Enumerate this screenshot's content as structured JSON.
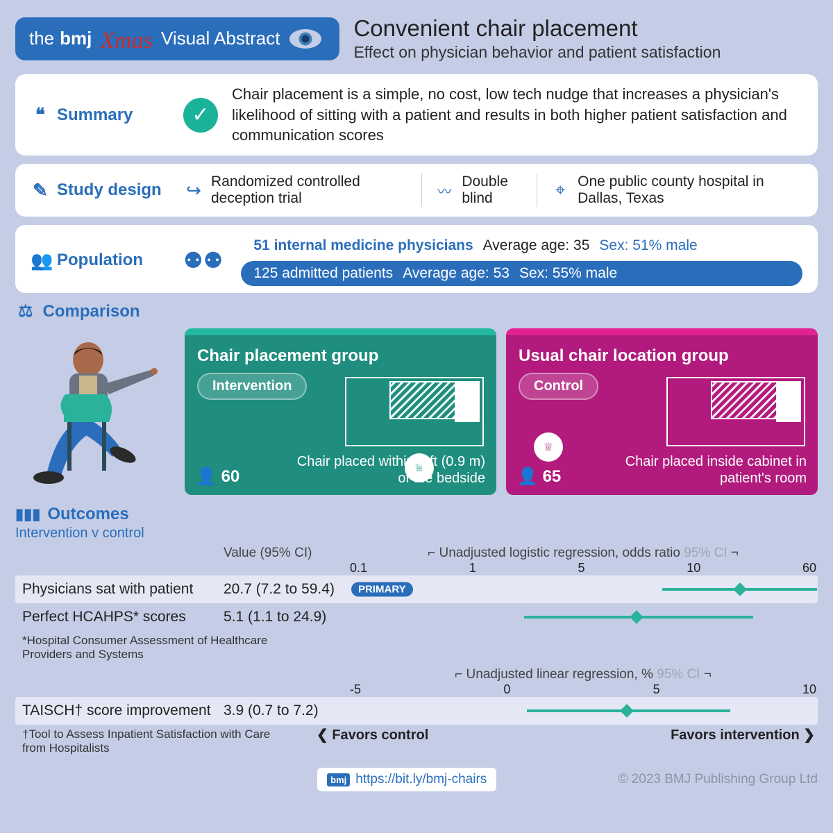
{
  "colors": {
    "bmj_blue": "#2a6ebb",
    "bg": "#c5cde6",
    "teal": "#1f8e7e",
    "teal_light": "#24b8a0",
    "magenta": "#b21b7d",
    "magenta_light": "#e32291",
    "forest": "#2bb29a",
    "grey": "#9aa5b5"
  },
  "header": {
    "brand_pre": "the",
    "brand_bold": "bmj",
    "xmas": "Xmas",
    "brand_suffix": "Visual Abstract",
    "title": "Convenient chair placement",
    "subtitle": "Effect on physician behavior and patient satisfaction"
  },
  "summary": {
    "label": "Summary",
    "text": "Chair placement is a simple, no cost, low tech nudge that increases a physician's likelihood of sitting with a patient and results in both higher patient satisfaction and communication scores"
  },
  "design": {
    "label": "Study design",
    "items": [
      {
        "icon": "↪",
        "text": "Randomized controlled deception trial"
      },
      {
        "icon": "👁",
        "text": "Double blind"
      },
      {
        "icon": "📍",
        "text": "One public county hospital in Dallas, Texas"
      }
    ]
  },
  "population": {
    "label": "Population",
    "physicians": {
      "n": "51 internal medicine physicians",
      "age": "Average age: 35",
      "sex": "Sex: 51% male"
    },
    "patients": {
      "n": "125 admitted patients",
      "age": "Average age: 53",
      "sex": "Sex: 55% male"
    }
  },
  "comparison": {
    "label": "Comparison",
    "intervention": {
      "title": "Chair placement group",
      "tag": "Intervention",
      "n": "60",
      "desc": "Chair placed within 3 ft (0.9 m) of the bedside"
    },
    "control": {
      "title": "Usual chair location group",
      "tag": "Control",
      "n": "65",
      "desc": "Chair placed inside cabinet in patient's room"
    }
  },
  "outcomes": {
    "label": "Outcomes",
    "sub": "Intervention v control",
    "value_header": "Value (95% CI)",
    "forest1": {
      "title_pre": "Unadjusted logistic regression, odds ratio",
      "ci_label": "95% CI",
      "scale": "log",
      "domain": [
        0.1,
        60
      ],
      "ticks": [
        "0.1",
        "1",
        "5",
        "10",
        "60"
      ],
      "rows": [
        {
          "label": "Physicians sat with patient",
          "value": "20.7 (7.2 to 59.4)",
          "lo": 7.2,
          "pt": 20.7,
          "hi": 59.4,
          "primary": true
        },
        {
          "label": "Perfect HCAHPS* scores",
          "value": "5.1 (1.1 to 24.9)",
          "lo": 1.1,
          "pt": 5.1,
          "hi": 24.9,
          "primary": false
        }
      ]
    },
    "note1": "*Hospital Consumer Assessment of Healthcare Providers and Systems",
    "forest2": {
      "title_pre": "Unadjusted linear regression, %",
      "ci_label": "95% CI",
      "scale": "linear",
      "domain": [
        -5,
        10
      ],
      "ticks": [
        "-5",
        "0",
        "5",
        "10"
      ],
      "rows": [
        {
          "label": "TAISCH† score improvement",
          "value": "3.9 (0.7 to 7.2)",
          "lo": 0.7,
          "pt": 3.9,
          "hi": 7.2,
          "primary": false
        }
      ]
    },
    "note2": "†Tool to Assess Inpatient Satisfaction with Care from Hospitalists",
    "favors_left": "Favors control",
    "favors_right": "Favors intervention"
  },
  "footer": {
    "url": "https://bit.ly/bmj-chairs",
    "copy": "© 2023 BMJ Publishing Group Ltd"
  }
}
